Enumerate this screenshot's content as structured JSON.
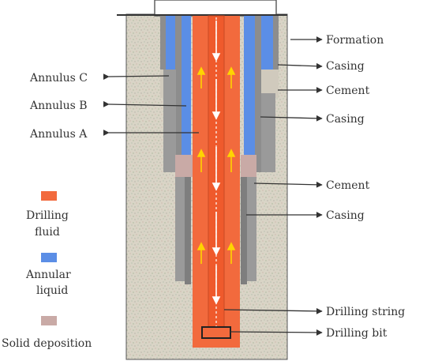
{
  "labels_right": {
    "formation": "Formation",
    "casing_1": "Casing",
    "cement_1": "Cement",
    "casing_2": "Casing",
    "cement_2": "Cement",
    "casing_3": "Casing",
    "drilling_string": "Drilling string",
    "drilling_bit": "Drilling bit"
  },
  "labels_left": {
    "annulus_c": "Annulus C",
    "annulus_b": "Annulus B",
    "annulus_a": "Annulus A"
  },
  "legend": [
    {
      "line1": "Drilling",
      "line2": "fluid",
      "color": "#f26a3d"
    },
    {
      "line1": "Annular",
      "line2": "liquid",
      "color": "#5b8ee6"
    },
    {
      "line1": "Solid deposition",
      "line2": "",
      "color": "#c9aaa6"
    }
  ],
  "colors": {
    "formation": "#d8d2c2",
    "casing": "#a3a3a3",
    "annular_liquid": "#5b8ee6",
    "drilling_fluid": "#f26a3d",
    "cement": "#d0cabd",
    "solid_deposition": "#c9aaa6",
    "arrow": "#ffd400"
  }
}
